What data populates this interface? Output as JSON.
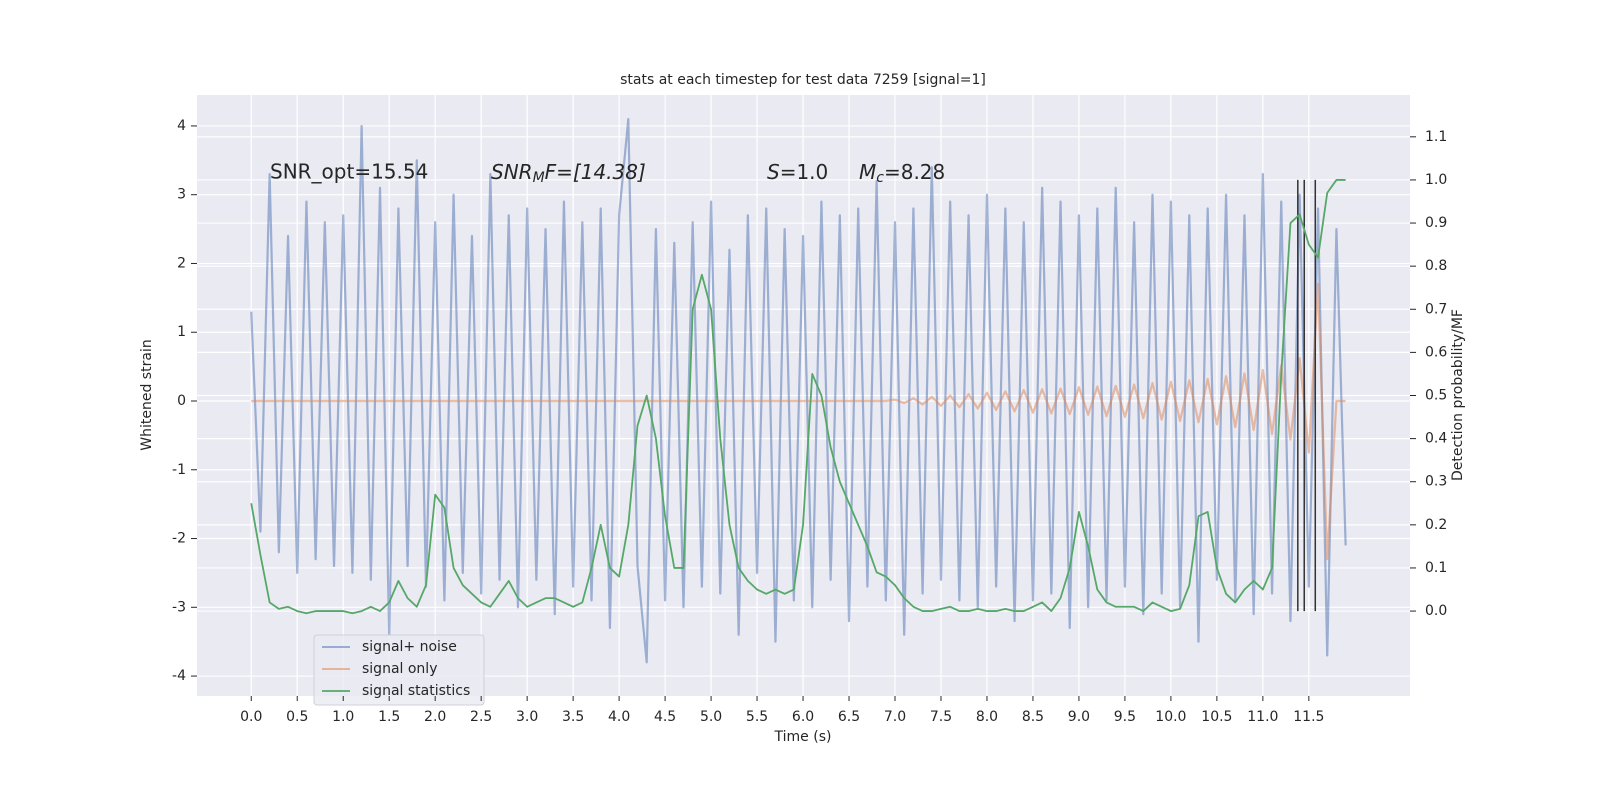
{
  "chart_data": {
    "type": "line",
    "title": "stats at each timestep for test data 7259 [signal=1]",
    "xlabel": "Time (s)",
    "ylabel": "Whitened strain",
    "y2label": "Detection probability/MF",
    "annotations": [
      "SNR_opt=15.54",
      [
        "SNR",
        "M",
        "F=[14.38]"
      ],
      [
        "S",
        "=1.0"
      ],
      [
        "M",
        "c",
        "=8.28"
      ]
    ],
    "xlim": [
      -0.59,
      12.6
    ],
    "ylim": [
      -4.29,
      4.45
    ],
    "y2lim": [
      -0.197,
      1.197
    ],
    "xticks": [
      {
        "value": 0,
        "label": "0.0"
      },
      0.5,
      {
        "value": 1,
        "label": "1.0"
      },
      1.5,
      {
        "value": 2,
        "label": "2.0"
      },
      2.5,
      {
        "value": 3,
        "label": "3.0"
      },
      3.5,
      {
        "value": 4,
        "label": "4.0"
      },
      4.5,
      {
        "value": 5,
        "label": "5.0"
      },
      5.5,
      {
        "value": 6,
        "label": "6.0"
      },
      6.5,
      {
        "value": 7,
        "label": "7.0"
      },
      7.5,
      {
        "value": 8,
        "label": "8.0"
      },
      8.5,
      {
        "value": 9,
        "label": "9.0"
      },
      9.5,
      {
        "value": 10,
        "label": "10.0"
      },
      10.5,
      {
        "value": 11,
        "label": "11.0"
      },
      11.5
    ],
    "yticks": [
      -4,
      -3,
      -2,
      -1,
      0,
      1,
      2,
      3,
      4
    ],
    "y2ticks": [
      {
        "value": 0,
        "label": "0.0"
      },
      0.1,
      0.2,
      0.3,
      0.4,
      0.5,
      0.6,
      0.7,
      0.8,
      0.9,
      {
        "value": 1,
        "label": "1.0"
      },
      1.1
    ],
    "grid": true,
    "legend": "lower left",
    "x": [
      0,
      0.1,
      0.2,
      0.3,
      0.4,
      0.5,
      0.6,
      0.7,
      0.8,
      0.9,
      1,
      1.1,
      1.2,
      1.3,
      1.4,
      1.5,
      1.6,
      1.7,
      1.8,
      1.9,
      2,
      2.1,
      2.2,
      2.3,
      2.4,
      2.5,
      2.6,
      2.7,
      2.8,
      2.9,
      3,
      3.1,
      3.2,
      3.3,
      3.4,
      3.5,
      3.6,
      3.7,
      3.8,
      3.9,
      4,
      4.1,
      4.2,
      4.3,
      4.4,
      4.5,
      4.6,
      4.7,
      4.8,
      4.9,
      5,
      5.1,
      5.2,
      5.3,
      5.4,
      5.5,
      5.6,
      5.7,
      5.8,
      5.9,
      6,
      6.1,
      6.2,
      6.3,
      6.4,
      6.5,
      6.6,
      6.7,
      6.8,
      6.9,
      7,
      7.1,
      7.2,
      7.3,
      7.4,
      7.5,
      7.6,
      7.7,
      7.8,
      7.9,
      8,
      8.1,
      8.2,
      8.3,
      8.4,
      8.5,
      8.6,
      8.7,
      8.8,
      8.9,
      9,
      9.1,
      9.2,
      9.3,
      9.4,
      9.5,
      9.6,
      9.7,
      9.8,
      9.9,
      10,
      10.1,
      10.2,
      10.3,
      10.4,
      10.5,
      10.6,
      10.7,
      10.8,
      10.9,
      11,
      11.1,
      11.2,
      11.3,
      11.4,
      11.5,
      11.6,
      11.7,
      11.8,
      11.9
    ],
    "series": [
      {
        "name": "signal+ noise",
        "color": "#4c72b0",
        "values": [
          1.3,
          -1.9,
          3.3,
          -2.2,
          2.4,
          -2.5,
          2.9,
          -2.3,
          2.6,
          -2.4,
          2.7,
          -2.5,
          4.0,
          -2.6,
          3.1,
          -3.4,
          2.8,
          -2.4,
          3.5,
          -2.7,
          2.6,
          -2.9,
          3.0,
          -2.5,
          2.4,
          -2.8,
          3.3,
          -2.6,
          2.7,
          -3.0,
          2.8,
          -2.6,
          2.5,
          -3.1,
          2.9,
          -2.7,
          2.6,
          -2.9,
          2.8,
          -3.3,
          2.7,
          4.1,
          -2.4,
          -3.8,
          2.5,
          -2.9,
          2.3,
          -3.0,
          2.6,
          -2.7,
          2.9,
          -2.8,
          2.2,
          -3.4,
          2.7,
          -2.5,
          2.8,
          -3.5,
          2.5,
          -2.9,
          2.4,
          -3.0,
          2.9,
          -2.6,
          2.7,
          -3.2,
          2.8,
          -2.7,
          3.2,
          -2.9,
          2.6,
          -3.4,
          2.8,
          -2.8,
          3.4,
          -2.6,
          2.9,
          -2.9,
          2.7,
          -3.0,
          3.0,
          -2.7,
          2.8,
          -3.2,
          2.6,
          -2.9,
          3.1,
          -2.8,
          2.9,
          -3.3,
          2.7,
          -3.0,
          2.8,
          -2.9,
          3.1,
          -2.7,
          2.6,
          -3.1,
          3.0,
          -2.8,
          2.9,
          -3.0,
          2.7,
          -3.5,
          2.8,
          -2.6,
          3.0,
          -2.9,
          2.7,
          -3.1,
          3.3,
          -2.8,
          2.9,
          -3.2,
          3.0,
          -2.7,
          2.8,
          -3.7,
          2.5,
          -2.1
        ]
      },
      {
        "name": "signal only",
        "color": "#dd8452",
        "values": [
          0,
          0,
          0,
          0,
          0,
          0,
          0,
          0,
          0,
          0,
          0,
          0,
          0,
          0,
          0,
          0,
          0,
          0,
          0,
          0,
          0,
          0,
          0,
          0,
          0,
          0,
          0,
          0,
          0,
          0,
          0,
          0,
          0,
          0,
          0,
          0,
          0,
          0,
          0,
          0,
          0,
          0,
          0,
          0,
          0,
          0,
          0,
          0,
          0,
          0,
          0,
          0,
          0,
          0,
          0,
          0,
          0,
          0,
          0,
          0,
          0,
          0,
          0,
          0,
          0,
          0,
          0,
          0,
          0,
          0,
          0.02,
          -0.03,
          0.04,
          -0.05,
          0.06,
          -0.07,
          0.08,
          -0.09,
          0.1,
          -0.11,
          0.12,
          -0.13,
          0.14,
          -0.15,
          0.16,
          -0.17,
          0.17,
          -0.18,
          0.18,
          -0.19,
          0.2,
          -0.2,
          0.21,
          -0.22,
          0.22,
          -0.23,
          0.24,
          -0.25,
          0.26,
          -0.27,
          0.28,
          -0.29,
          0.3,
          -0.31,
          0.32,
          -0.34,
          0.36,
          -0.38,
          0.4,
          -0.42,
          0.45,
          -0.48,
          0.52,
          -0.56,
          0.62,
          -0.75,
          1.7,
          -2.3,
          0,
          0
        ]
      },
      {
        "name": "signal statistics",
        "color": "#55a868",
        "axis": "y2",
        "values": [
          0.25,
          0.13,
          0.02,
          0.005,
          0.01,
          0,
          -0.005,
          0,
          0,
          0,
          0,
          -0.005,
          0,
          0.01,
          0,
          0.02,
          0.07,
          0.03,
          0.01,
          0.06,
          0.27,
          0.24,
          0.1,
          0.06,
          0.04,
          0.02,
          0.01,
          0.04,
          0.07,
          0.03,
          0.01,
          0.02,
          0.03,
          0.03,
          0.02,
          0.01,
          0.02,
          0.1,
          0.2,
          0.1,
          0.08,
          0.2,
          0.43,
          0.5,
          0.4,
          0.22,
          0.1,
          0.1,
          0.7,
          0.78,
          0.7,
          0.4,
          0.2,
          0.1,
          0.07,
          0.05,
          0.04,
          0.05,
          0.04,
          0.05,
          0.2,
          0.55,
          0.5,
          0.38,
          0.3,
          0.25,
          0.2,
          0.15,
          0.09,
          0.08,
          0.06,
          0.03,
          0.01,
          0,
          0,
          0.005,
          0.01,
          0,
          0,
          0.005,
          0,
          0,
          0.005,
          0,
          0,
          0.01,
          0.02,
          0,
          0.03,
          0.1,
          0.23,
          0.15,
          0.05,
          0.02,
          0.01,
          0.01,
          0.01,
          0,
          0.02,
          0.01,
          0,
          0.005,
          0.06,
          0.22,
          0.23,
          0.1,
          0.04,
          0.02,
          0.05,
          0.07,
          0.05,
          0.1,
          0.55,
          0.9,
          0.92,
          0.85,
          0.82,
          0.97,
          1.0,
          1.0
        ]
      }
    ],
    "vlines": [
      11.38,
      11.45,
      11.57
    ],
    "vline_range": [
      0,
      1
    ],
    "vline_color": "#333333"
  }
}
